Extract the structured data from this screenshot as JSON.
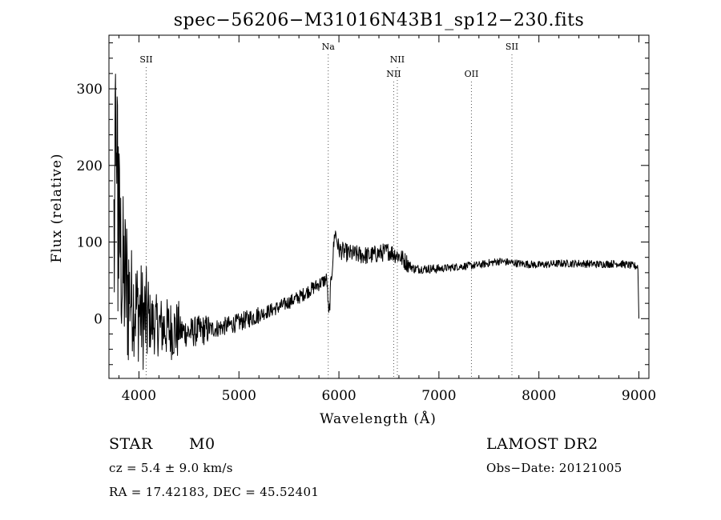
{
  "chart_data": {
    "type": "line",
    "title": "spec−56206−M31016N43B1_sp12−230.fits",
    "xlabel": "Wavelength (Å)",
    "ylabel": "Flux (relative)",
    "xlim": [
      3700,
      9100
    ],
    "ylim": [
      -78,
      370
    ],
    "x_ticks": [
      4000,
      5000,
      6000,
      7000,
      8000,
      9000
    ],
    "y_ticks": [
      0,
      100,
      200,
      300
    ],
    "x_tick_labels": [
      "4000",
      "5000",
      "6000",
      "7000",
      "8000",
      "9000"
    ],
    "y_tick_labels": [
      "0",
      "100",
      "200",
      "300"
    ],
    "grid": false,
    "legend": "none",
    "line_color": "#000000",
    "series": [
      {
        "x": [
          3750,
          3790,
          3830,
          3880,
          3950,
          4050,
          4200,
          4350,
          4500,
          4650,
          4800,
          5000,
          5200,
          5400,
          5600,
          5800,
          5880,
          5900,
          5920,
          5960,
          6000,
          6100,
          6300,
          6500,
          6600,
          6750,
          7000,
          7200,
          7400,
          7600,
          7800,
          8000,
          8200,
          8400,
          8600,
          8800,
          8990
        ],
        "y": [
          100,
          150,
          60,
          40,
          20,
          0,
          -10,
          -15,
          -18,
          -15,
          -12,
          -5,
          5,
          15,
          28,
          45,
          52,
          0,
          45,
          115,
          90,
          85,
          82,
          88,
          82,
          65,
          65,
          68,
          70,
          75,
          72,
          70,
          72,
          72,
          71,
          72,
          68
        ]
      }
    ],
    "spectral_lines": [
      {
        "label": "SII",
        "x": 4072,
        "row": 1
      },
      {
        "label": "Na",
        "x": 5893,
        "row": 0
      },
      {
        "label": "NII",
        "x": 6548,
        "row": 2
      },
      {
        "label": "NII",
        "x": 6584,
        "row": 1
      },
      {
        "label": "OII",
        "x": 7325,
        "row": 2
      },
      {
        "label": "SII",
        "x": 7730,
        "row": 0
      }
    ]
  },
  "info": {
    "object_class": "STAR",
    "subclass": "M0",
    "survey": "LAMOST DR2",
    "cz": "cz = 5.4 ± 9.0 km/s",
    "obs_date": "Obs−Date: 20121005",
    "radec": "RA =  17.42183, DEC =  45.52401"
  }
}
